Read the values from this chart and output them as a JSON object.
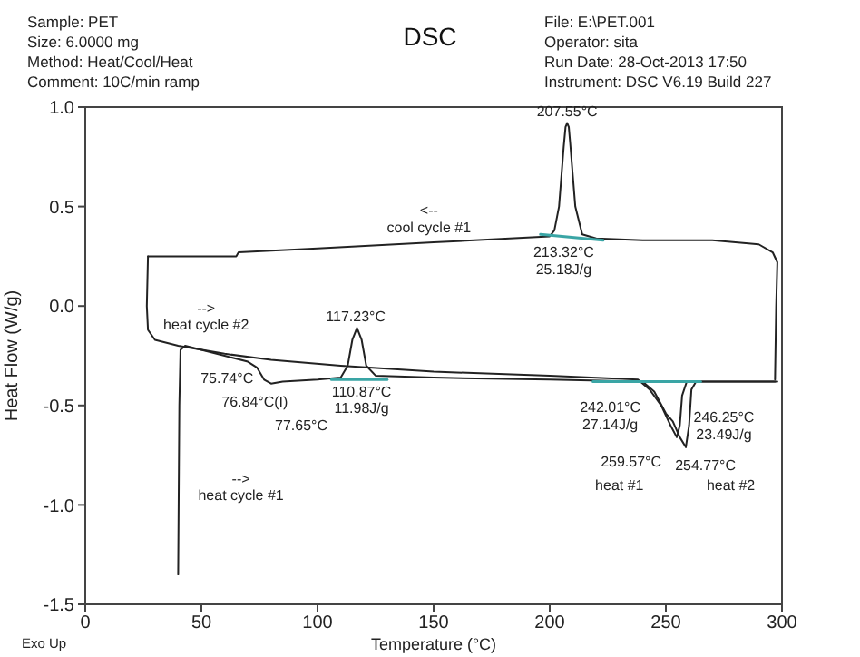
{
  "chart_data": {
    "type": "line",
    "title": "DSC",
    "xlabel": "Temperature (°C)",
    "ylabel": "Heat Flow (W/g)",
    "xlim": [
      0,
      300
    ],
    "xticks": [
      0,
      50,
      100,
      150,
      200,
      250,
      300
    ],
    "ylim": [
      -1.5,
      1.0
    ],
    "yticks": [
      {
        "value": -1.5,
        "label": "-1.5"
      },
      {
        "value": -1,
        "label": "-1.0"
      },
      {
        "value": -0.5,
        "label": "-0.5"
      },
      {
        "value": 0,
        "label": "0.0"
      },
      {
        "value": 0.5,
        "label": "0.5"
      },
      {
        "value": 1,
        "label": "1.0"
      }
    ],
    "series": [
      {
        "color": "#222222",
        "x": [
          40,
          40.5,
          41,
          43,
          50,
          60,
          70,
          74,
          77,
          80,
          85,
          100,
          110,
          113,
          115,
          117,
          119,
          121,
          125,
          150,
          200,
          240,
          245,
          250,
          253,
          256,
          258.6,
          260,
          261,
          263,
          280,
          297
        ],
        "values": [
          -1.35,
          -0.5,
          -0.22,
          -0.2,
          -0.22,
          -0.25,
          -0.28,
          -0.31,
          -0.37,
          -0.39,
          -0.38,
          -0.37,
          -0.36,
          -0.3,
          -0.17,
          -0.11,
          -0.17,
          -0.3,
          -0.35,
          -0.36,
          -0.37,
          -0.38,
          -0.43,
          -0.54,
          -0.58,
          -0.66,
          -0.71,
          -0.6,
          -0.42,
          -0.38,
          -0.38,
          -0.38
        ]
      },
      {
        "color": "#222222",
        "x": [
          297,
          297.5,
          298,
          296,
          290,
          270,
          240,
          220,
          214,
          211,
          208.8,
          208.2,
          207.5,
          206.8,
          206,
          204,
          202,
          200,
          150,
          100,
          66,
          65,
          40,
          27
        ],
        "values": [
          -0.37,
          0,
          0.22,
          0.27,
          0.31,
          0.33,
          0.33,
          0.34,
          0.36,
          0.5,
          0.82,
          0.9,
          0.92,
          0.9,
          0.8,
          0.5,
          0.38,
          0.35,
          0.32,
          0.29,
          0.27,
          0.25,
          0.25,
          0.25
        ]
      },
      {
        "color": "#222222",
        "x": [
          27,
          26.5,
          27,
          30,
          40,
          60,
          80,
          110,
          150,
          200,
          238,
          243,
          248,
          252,
          254.7,
          256,
          257,
          259,
          280,
          298
        ],
        "values": [
          0.25,
          0,
          -0.12,
          -0.17,
          -0.2,
          -0.24,
          -0.27,
          -0.3,
          -0.33,
          -0.35,
          -0.37,
          -0.42,
          -0.5,
          -0.6,
          -0.66,
          -0.6,
          -0.45,
          -0.38,
          -0.38,
          -0.38
        ]
      },
      {
        "color": "#3aa5a5",
        "x": [
          196,
          223
        ],
        "values": [
          0.36,
          0.33
        ]
      },
      {
        "color": "#3aa5a5",
        "x": [
          106,
          130
        ],
        "values": [
          -0.37,
          -0.37
        ]
      },
      {
        "color": "#3aa5a5",
        "x": [
          218.6,
          265
        ],
        "values": [
          -0.38,
          -0.38
        ]
      }
    ],
    "annotations": [
      "Sample: PET",
      "Size:  6.0000 mg",
      "Method: Heat/Cool/Heat",
      "Comment: 10C/min ramp",
      "File: E:\\PET.001",
      "Operator: sita",
      "Run Date: 28-Oct-2013 17:50",
      "Instrument: DSC V6.19 Build 227",
      "Exo Up",
      "207.55°C",
      "213.32°C\n25.18J/g",
      "<--\ncool cycle #1",
      "-->\nheat cycle #2",
      "117.23°C",
      "75.74°C",
      "76.84°C(I)",
      "77.65°C",
      "110.87°C\n11.98J/g",
      "242.01°C\n27.14J/g",
      "246.25°C\n23.49J/g",
      "259.57°C",
      "254.77°C",
      "heat #1",
      "heat #2",
      "-->\nheat cycle #1"
    ]
  }
}
